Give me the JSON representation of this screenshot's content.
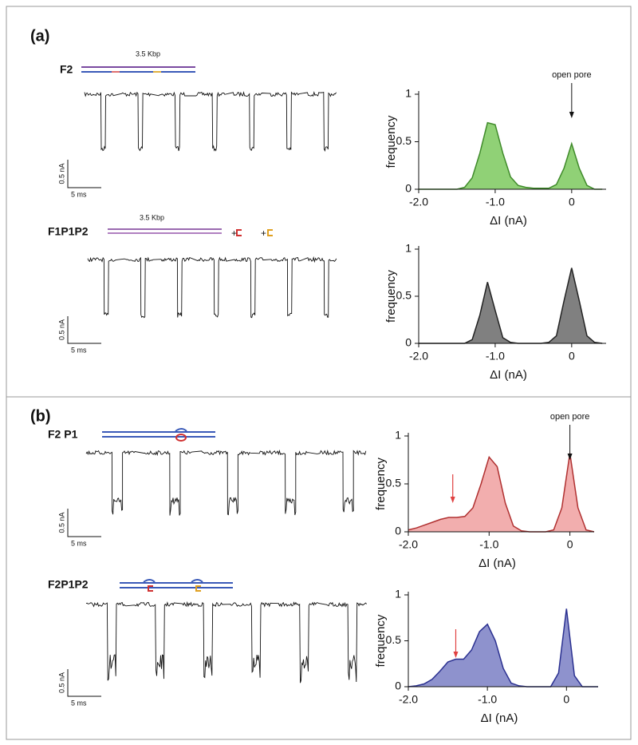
{
  "panels": [
    {
      "label": "(a)"
    },
    {
      "label": "(b)"
    }
  ],
  "traces": [
    {
      "name": "F2",
      "length": "3.5 Kbp",
      "current_scale": "0.5 nA",
      "time_scale": "5 ms"
    },
    {
      "name": "F1P1P2",
      "length": "3.5 Kbp",
      "additions": [
        "+",
        "+"
      ],
      "current_scale": "0.5 nA",
      "time_scale": "5 ms"
    },
    {
      "name": "F2 P1",
      "current_scale": "0.5 nA",
      "time_scale": "5 ms"
    },
    {
      "name": "F2P1P2",
      "current_scale": "0.5 nA",
      "time_scale": "5 ms"
    }
  ],
  "chart_data": [
    {
      "type": "area",
      "xlabel": "ΔI (nA)",
      "ylabel": "frequency",
      "color": "#7dc95e",
      "line_color": "#3f8a2a",
      "x": [
        -2.0,
        -1.9,
        -1.8,
        -1.7,
        -1.6,
        -1.5,
        -1.4,
        -1.3,
        -1.2,
        -1.1,
        -1.0,
        -0.9,
        -0.8,
        -0.7,
        -0.6,
        -0.5,
        -0.4,
        -0.3,
        -0.2,
        -0.1,
        0,
        0.1,
        0.2,
        0.3,
        0.4
      ],
      "values": [
        0,
        0,
        0,
        0,
        0,
        0,
        0.02,
        0.12,
        0.38,
        0.7,
        0.68,
        0.38,
        0.13,
        0.04,
        0.02,
        0.01,
        0.01,
        0.01,
        0.05,
        0.22,
        0.48,
        0.22,
        0.04,
        0,
        0
      ],
      "xlim": [
        -2.0,
        0.45
      ],
      "ylim": [
        0,
        1
      ],
      "xticks": [
        {
          "value": -2.0,
          "label": "-2.0"
        },
        {
          "value": -1.0,
          "label": "-1.0"
        },
        0
      ],
      "yticks": [
        0,
        0.5,
        1
      ],
      "annotations": [
        {
          "text": "open pore",
          "x": 0
        }
      ]
    },
    {
      "type": "area",
      "xlabel": "ΔI (nA)",
      "ylabel": "frequency",
      "color": "#6a6a6a",
      "line_color": "#222222",
      "x": [
        -2.0,
        -1.9,
        -1.8,
        -1.7,
        -1.6,
        -1.5,
        -1.4,
        -1.3,
        -1.2,
        -1.1,
        -1.0,
        -0.9,
        -0.8,
        -0.7,
        -0.6,
        -0.5,
        -0.4,
        -0.3,
        -0.2,
        -0.1,
        0,
        0.1,
        0.2,
        0.3,
        0.4
      ],
      "values": [
        0,
        0,
        0,
        0,
        0,
        0,
        0,
        0.04,
        0.3,
        0.65,
        0.35,
        0.06,
        0.01,
        0,
        0,
        0,
        0,
        0.01,
        0.08,
        0.45,
        0.8,
        0.45,
        0.08,
        0.01,
        0
      ],
      "xlim": [
        -2.0,
        0.45
      ],
      "ylim": [
        0,
        1
      ],
      "xticks": [
        {
          "value": -2.0,
          "label": "-2.0"
        },
        {
          "value": -1.0,
          "label": "-1.0"
        },
        0
      ],
      "yticks": [
        0,
        0.5,
        1
      ]
    },
    {
      "type": "area",
      "xlabel": "ΔI (nA)",
      "ylabel": "frequency",
      "color": "#f0a0a0",
      "line_color": "#b03030",
      "x": [
        -2.0,
        -1.9,
        -1.8,
        -1.7,
        -1.6,
        -1.5,
        -1.4,
        -1.3,
        -1.2,
        -1.1,
        -1.0,
        -0.9,
        -0.8,
        -0.7,
        -0.6,
        -0.5,
        -0.4,
        -0.3,
        -0.2,
        -0.1,
        0,
        0.1,
        0.2,
        0.3
      ],
      "values": [
        0.02,
        0.04,
        0.07,
        0.1,
        0.13,
        0.15,
        0.15,
        0.16,
        0.25,
        0.5,
        0.78,
        0.68,
        0.3,
        0.06,
        0.01,
        0,
        0,
        0,
        0.02,
        0.25,
        0.82,
        0.25,
        0.02,
        0
      ],
      "xlim": [
        -2.0,
        0.3
      ],
      "ylim": [
        0,
        1
      ],
      "xticks": [
        {
          "value": -2.0,
          "label": "-2.0"
        },
        {
          "value": -1.0,
          "label": "-1.0"
        },
        0
      ],
      "yticks": [
        0,
        0.5,
        1
      ],
      "annotations": [
        {
          "text": "open pore",
          "x": 0
        }
      ],
      "markers": [
        {
          "x": -1.45,
          "color": "#e04040"
        }
      ]
    },
    {
      "type": "area",
      "xlabel": "ΔI (nA)",
      "ylabel": "frequency",
      "color": "#7a7fc4",
      "line_color": "#2a3090",
      "x": [
        -2.0,
        -1.9,
        -1.8,
        -1.7,
        -1.6,
        -1.5,
        -1.4,
        -1.3,
        -1.2,
        -1.1,
        -1.0,
        -0.9,
        -0.8,
        -0.7,
        -0.6,
        -0.5,
        -0.4,
        -0.3,
        -0.2,
        -0.1,
        0,
        0.1,
        0.2,
        0.3,
        0.4
      ],
      "values": [
        0,
        0.01,
        0.03,
        0.08,
        0.17,
        0.27,
        0.3,
        0.3,
        0.4,
        0.6,
        0.68,
        0.5,
        0.2,
        0.04,
        0.01,
        0,
        0,
        0,
        0,
        0.15,
        0.85,
        0.12,
        0,
        0,
        0
      ],
      "xlim": [
        -2.0,
        0.4
      ],
      "ylim": [
        0,
        1
      ],
      "xticks": [
        {
          "value": -2.0,
          "label": "-2.0"
        },
        {
          "value": -1.0,
          "label": "-1.0"
        },
        0
      ],
      "yticks": [
        0,
        0.5,
        1
      ],
      "markers": [
        {
          "x": -1.4,
          "color": "#e04040"
        }
      ]
    }
  ]
}
